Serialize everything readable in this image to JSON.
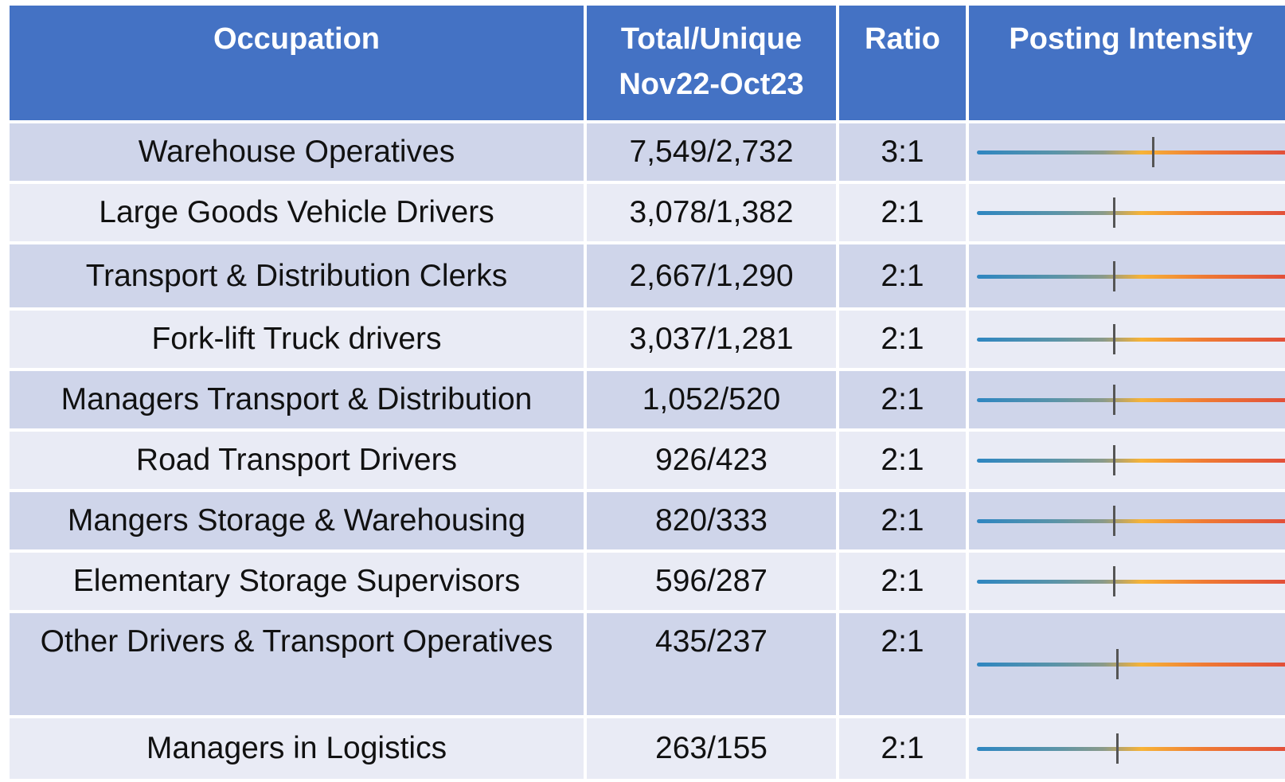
{
  "table": {
    "header": [
      "Occupation",
      [
        "Total/Unique",
        "Nov22-Oct23"
      ],
      "Ratio",
      "Posting Intensity"
    ],
    "rows": [
      [
        "Warehouse Operatives",
        "7,549/2,732",
        "3:1"
      ],
      [
        "Large Goods Vehicle Drivers",
        "3,078/1,382",
        "2:1"
      ],
      [
        "Transport & Distribution Clerks",
        "2,667/1,290",
        "2:1"
      ],
      [
        "Fork-lift Truck drivers",
        "3,037/1,281",
        "2:1"
      ],
      [
        "Managers Transport & Distribution",
        "1,052/520",
        "2:1"
      ],
      [
        "Road Transport Drivers",
        "926/423",
        "2:1"
      ],
      [
        "Mangers Storage & Warehousing",
        "820/333",
        "2:1"
      ],
      [
        "Elementary Storage Supervisors",
        "596/287",
        "2:1"
      ],
      [
        "Other Drivers & Transport Operatives",
        "435/237",
        "2:1"
      ],
      [
        "Managers in Logistics",
        "263/155",
        "2:1"
      ]
    ]
  }
}
